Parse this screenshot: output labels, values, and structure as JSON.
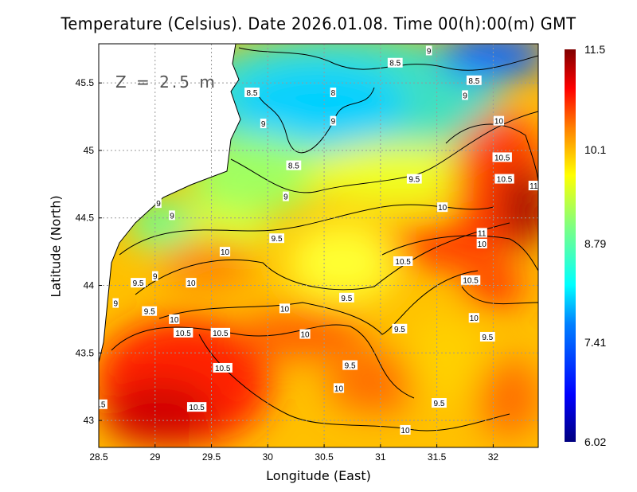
{
  "chart_data": {
    "type": "heatmap",
    "title": "Temperature (Celsius). Date 2026.01.08. Time 00(h):00(m) GMT",
    "xlabel": "Longitude (East)",
    "ylabel": "Latitude (North)",
    "annotation": "Z = 2.5 m",
    "xlim": [
      28.5,
      32.4
    ],
    "ylim": [
      42.8,
      45.79
    ],
    "x_ticks": [
      "28.5",
      "29",
      "29.5",
      "30",
      "30.5",
      "31",
      "31.5",
      "32"
    ],
    "x_tick_values": [
      28.5,
      29,
      29.5,
      30,
      30.5,
      31,
      31.5,
      32
    ],
    "y_ticks": [
      "45.5",
      "45",
      "44.5",
      "44",
      "43.5",
      "43"
    ],
    "y_tick_values": [
      45.5,
      45,
      44.5,
      44,
      43.5,
      43
    ],
    "grid": true,
    "colorbar": {
      "min": 6.02,
      "max": 11.5,
      "labels": [
        "11.5",
        "10.1",
        "8.79",
        "7.41",
        "6.02"
      ],
      "label_values": [
        11.5,
        10.1,
        8.79,
        7.41,
        6.02
      ],
      "colormap": [
        "#00007f",
        "#0000ff",
        "#0080ff",
        "#00ffff",
        "#80ff80",
        "#ffff00",
        "#ff8000",
        "#ff0000",
        "#7f0000"
      ]
    },
    "contour_interval": 0.5,
    "contour_labels": [
      {
        "text": "8.5",
        "lon": 31.13,
        "lat": 45.65
      },
      {
        "text": "9",
        "lon": 31.43,
        "lat": 45.74
      },
      {
        "text": "8.5",
        "lon": 31.83,
        "lat": 45.52
      },
      {
        "text": "9",
        "lon": 31.75,
        "lat": 45.41
      },
      {
        "text": "8.5",
        "lon": 29.86,
        "lat": 45.43
      },
      {
        "text": "8",
        "lon": 30.58,
        "lat": 45.43
      },
      {
        "text": "9",
        "lon": 29.96,
        "lat": 45.2
      },
      {
        "text": "9",
        "lon": 30.58,
        "lat": 45.22
      },
      {
        "text": "8.5",
        "lon": 30.23,
        "lat": 44.89
      },
      {
        "text": "9",
        "lon": 30.16,
        "lat": 44.66
      },
      {
        "text": "10",
        "lon": 32.05,
        "lat": 45.22
      },
      {
        "text": "10.5",
        "lon": 32.08,
        "lat": 44.95
      },
      {
        "text": "10.5",
        "lon": 32.1,
        "lat": 44.79
      },
      {
        "text": "11",
        "lon": 32.36,
        "lat": 44.74
      },
      {
        "text": "9.5",
        "lon": 31.3,
        "lat": 44.79
      },
      {
        "text": "10",
        "lon": 31.55,
        "lat": 44.58
      },
      {
        "text": "9",
        "lon": 29.03,
        "lat": 44.61
      },
      {
        "text": "9",
        "lon": 29.15,
        "lat": 44.52
      },
      {
        "text": "9.5",
        "lon": 30.08,
        "lat": 44.35
      },
      {
        "text": "10",
        "lon": 29.62,
        "lat": 44.25
      },
      {
        "text": "11",
        "lon": 31.9,
        "lat": 44.39
      },
      {
        "text": "10",
        "lon": 31.9,
        "lat": 44.31
      },
      {
        "text": "10.5",
        "lon": 31.2,
        "lat": 44.18
      },
      {
        "text": "10.5",
        "lon": 31.8,
        "lat": 44.04
      },
      {
        "text": "9.5",
        "lon": 28.85,
        "lat": 44.02
      },
      {
        "text": "9",
        "lon": 29.0,
        "lat": 44.07
      },
      {
        "text": "10",
        "lon": 29.32,
        "lat": 44.02
      },
      {
        "text": "9",
        "lon": 28.65,
        "lat": 43.87
      },
      {
        "text": "9.5",
        "lon": 28.95,
        "lat": 43.81
      },
      {
        "text": "10",
        "lon": 29.17,
        "lat": 43.75
      },
      {
        "text": "10",
        "lon": 30.15,
        "lat": 43.83
      },
      {
        "text": "9.5",
        "lon": 30.7,
        "lat": 43.91
      },
      {
        "text": "10.5",
        "lon": 29.25,
        "lat": 43.65
      },
      {
        "text": "10.5",
        "lon": 29.58,
        "lat": 43.65
      },
      {
        "text": "10",
        "lon": 30.33,
        "lat": 43.64
      },
      {
        "text": "9.5",
        "lon": 31.17,
        "lat": 43.68
      },
      {
        "text": "10",
        "lon": 31.83,
        "lat": 43.76
      },
      {
        "text": "9.5",
        "lon": 31.95,
        "lat": 43.62
      },
      {
        "text": "9.5",
        "lon": 30.73,
        "lat": 43.41
      },
      {
        "text": "10.5",
        "lon": 29.6,
        "lat": 43.39
      },
      {
        "text": "10",
        "lon": 30.63,
        "lat": 43.24
      },
      {
        "text": "9.5",
        "lon": 31.52,
        "lat": 43.13
      },
      {
        "text": "10.5",
        "lon": 29.37,
        "lat": 43.1
      },
      {
        "text": "10",
        "lon": 31.22,
        "lat": 42.93
      },
      {
        "text": ".5",
        "lon": 28.53,
        "lat": 43.12
      }
    ]
  }
}
